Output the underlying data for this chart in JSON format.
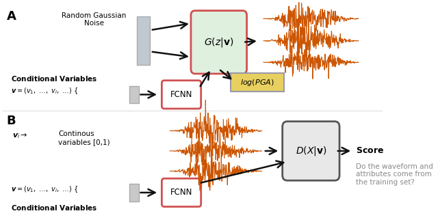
{
  "fig_width": 6.4,
  "fig_height": 3.25,
  "dpi": 100,
  "bg_color": "#ffffff",
  "orange_color": "#cc5500",
  "arrow_color": "#111111",
  "label_A": "A",
  "label_B": "B",
  "gen_box_label": "$G(z|\\mathbf{v})$",
  "disc_box_label": "$D(X|\\mathbf{v})$",
  "fcnn_label": "FCNN",
  "log_pga_label": "$log(PGA)$",
  "noise_label": "Random Gaussian\nNoise",
  "vi_label": "$\\boldsymbol{v}_i \\rightarrow$",
  "cont_vars": "Continous\nvariables [0,1)",
  "score_question": "Do the waveform and\nattributes come from\nthe training set?",
  "gen_box_color": "#dff0de",
  "gen_box_edge": "#d05050",
  "disc_box_color": "#e8e8e8",
  "disc_box_edge": "#555555",
  "fcnn_box_color": "#ffffff",
  "fcnn_box_edge": "#d05050",
  "log_pga_box_color": "#e8d060",
  "log_pga_box_edge": "#9999aa",
  "noise_bar_color": "#c0c8d0",
  "noise_bar_edge": "#aaaaaa",
  "v_bar_color": "#c8c8c8",
  "v_bar_edge": "#aaaaaa"
}
